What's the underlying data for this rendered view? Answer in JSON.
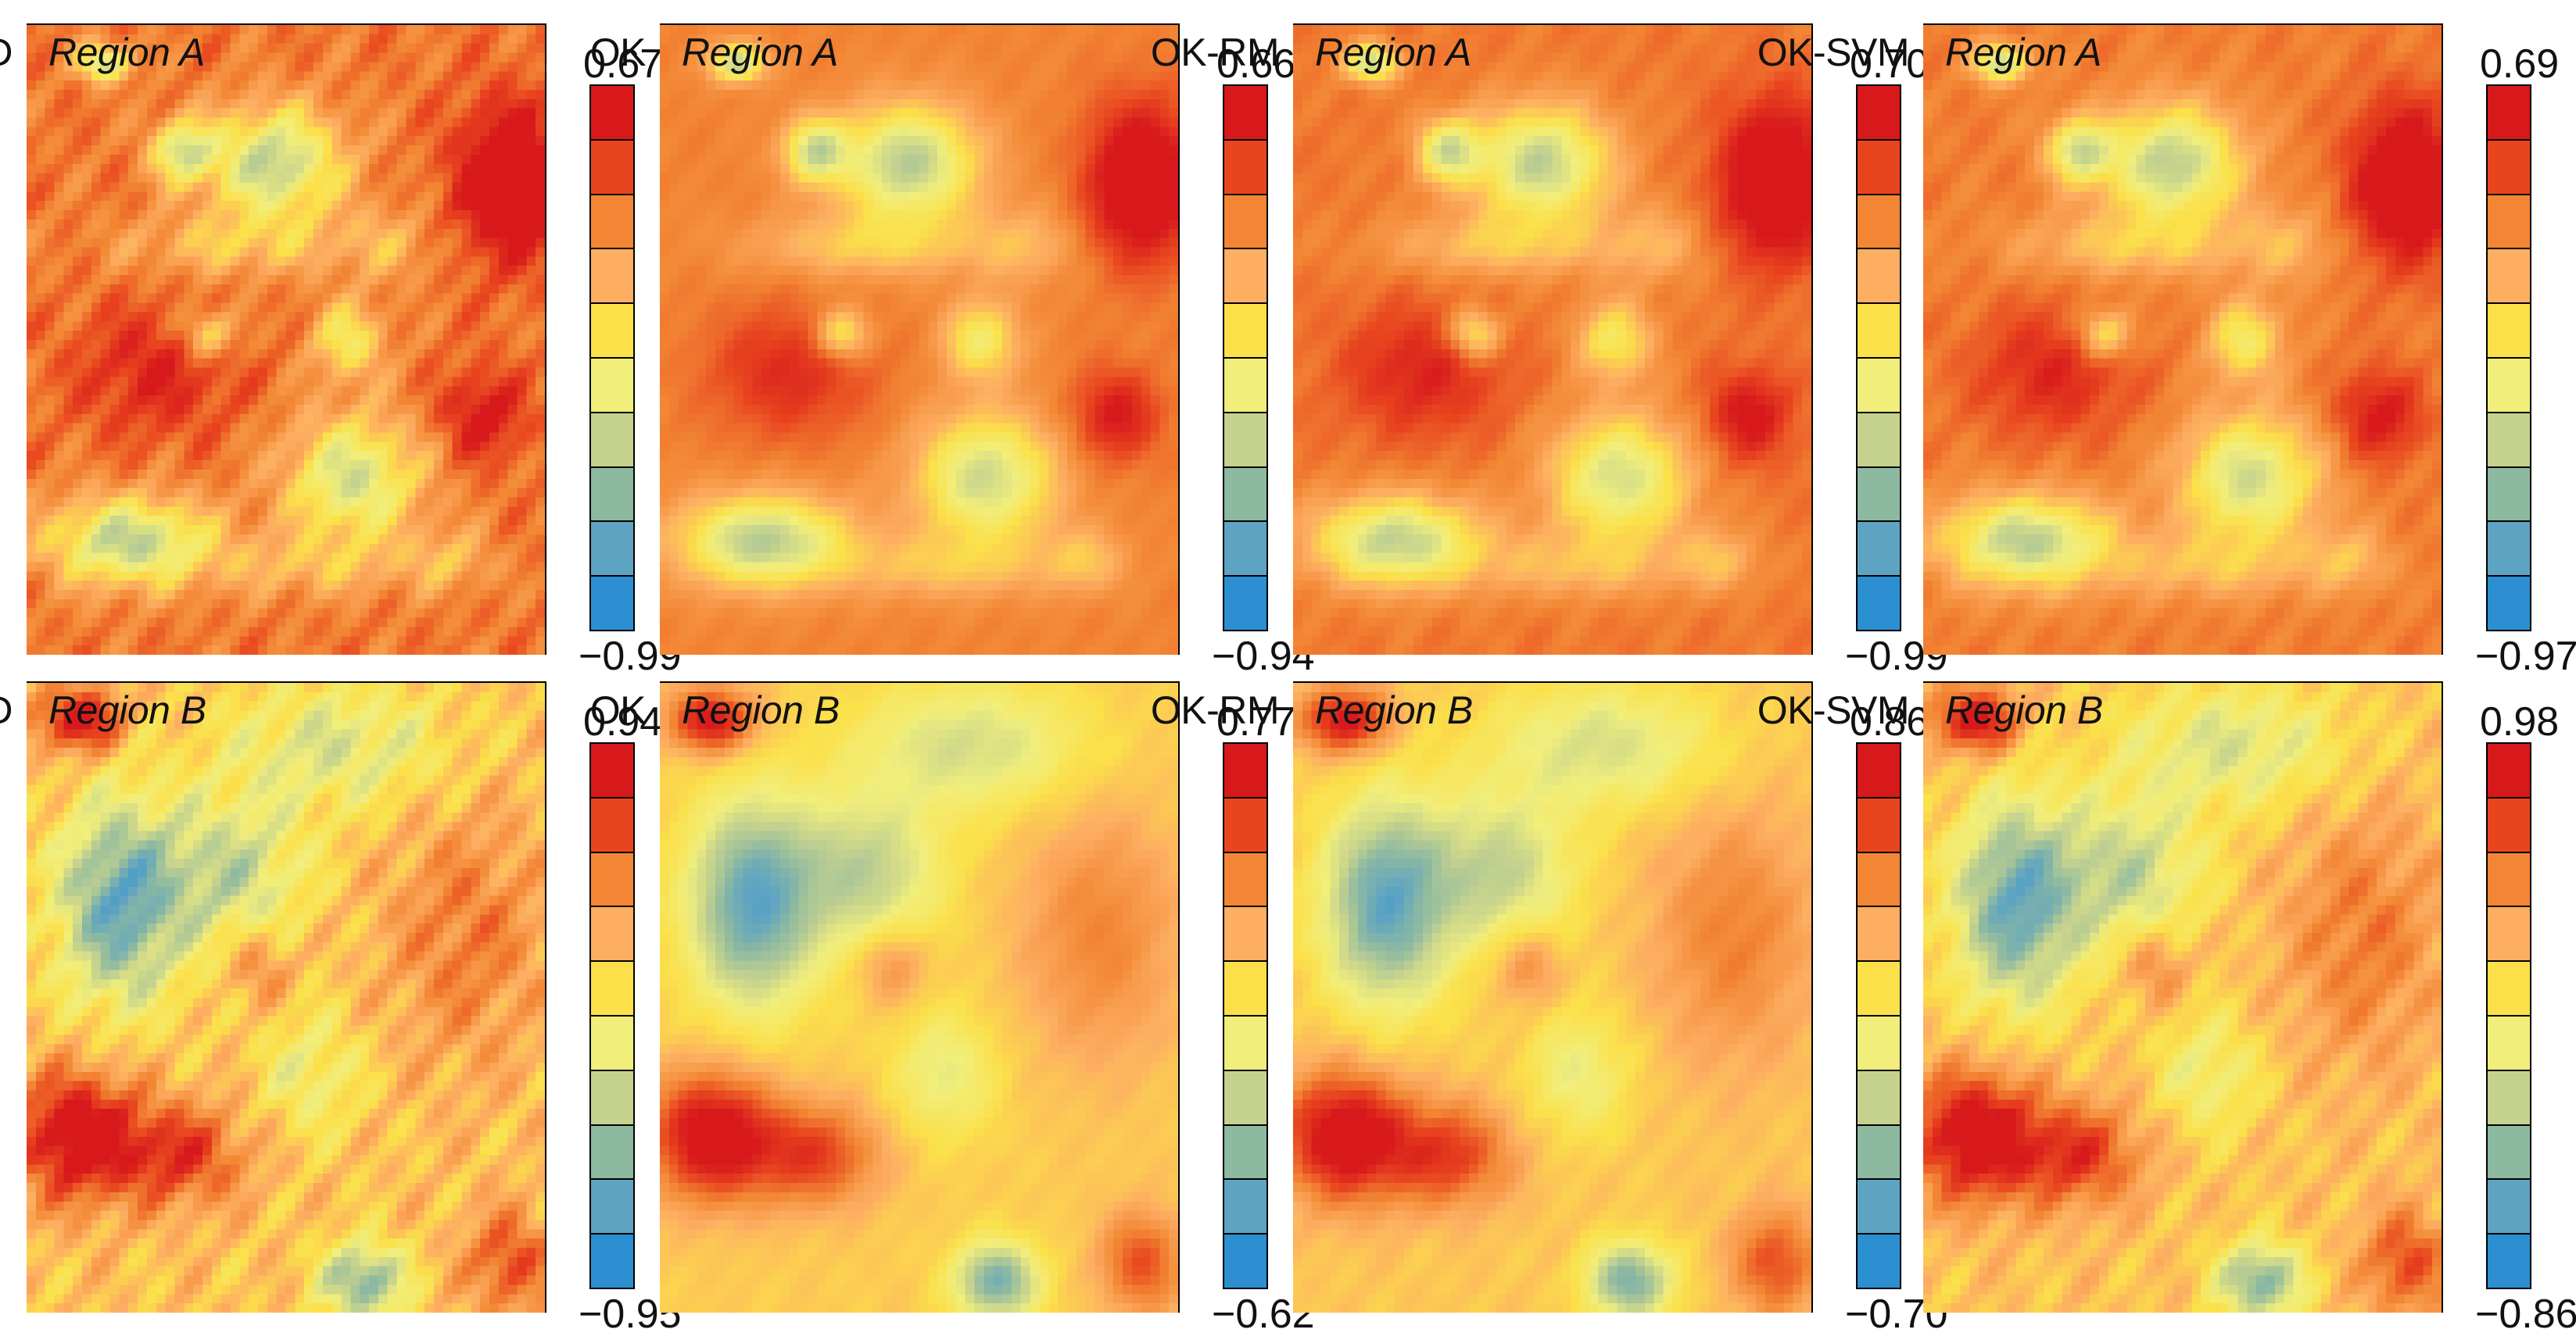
{
  "figure": {
    "palette": [
      "#d7191c",
      "#e8451f",
      "#f28634",
      "#fdae61",
      "#fbe04a",
      "#f1ee7b",
      "#c4d28e",
      "#8db9a1",
      "#5ea4c2",
      "#2b8fd1"
    ],
    "rows": [
      {
        "region": "Region A",
        "panels": [
          {
            "method": "RD",
            "max": "0.67",
            "min": "−0.99"
          },
          {
            "method": "OK",
            "max": "0.66",
            "min": "−0.94"
          },
          {
            "method": "OK-RM",
            "max": "0.70",
            "min": "−0.99"
          },
          {
            "method": "OK-SVM",
            "max": "0.69",
            "min": "−0.97"
          }
        ]
      },
      {
        "region": "Region B",
        "panels": [
          {
            "method": "RD",
            "max": "0.94",
            "min": "−0.95"
          },
          {
            "method": "OK",
            "max": "0.77",
            "min": "−0.62"
          },
          {
            "method": "OK-RM",
            "max": "0.86",
            "min": "−0.70"
          },
          {
            "method": "OK-SVM",
            "max": "0.98",
            "min": "−0.86"
          }
        ]
      }
    ]
  }
}
